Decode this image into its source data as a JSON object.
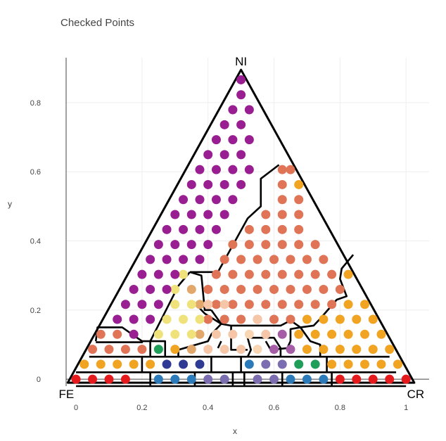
{
  "chart_data": {
    "type": "scatter",
    "title": "Checked Points",
    "xlabel": "x",
    "ylabel": "y",
    "xlim": [
      -0.03,
      1.07
    ],
    "ylim": [
      -0.02,
      0.93
    ],
    "x_ticks": [
      0,
      0.2,
      0.4,
      0.6,
      0.8,
      1
    ],
    "y_ticks": [
      0,
      0.2,
      0.4,
      0.6,
      0.8
    ],
    "x_tick_labels": [
      "0",
      "0.2",
      "0.4",
      "0.6",
      "0.8",
      "1"
    ],
    "y_tick_labels": [
      "0",
      "0.2",
      "0.4",
      "0.6",
      "0.8"
    ],
    "grid": true,
    "vertex_labels": {
      "top": "NI",
      "left": "FE",
      "right": "CR"
    },
    "ternary_step": 0.05,
    "series": [
      {
        "color": "#e41a1c",
        "points": [
          [
            0,
            0
          ],
          [
            0.05,
            0
          ],
          [
            0.1,
            0
          ],
          [
            0.15,
            0
          ],
          [
            0.8,
            0
          ],
          [
            0.85,
            0
          ],
          [
            0.9,
            0
          ],
          [
            0.95,
            0
          ],
          [
            1,
            0
          ]
        ]
      },
      {
        "color": "#2b7bba",
        "points": [
          [
            0.25,
            0
          ],
          [
            0.3,
            0
          ],
          [
            0.35,
            0
          ],
          [
            0.65,
            0
          ],
          [
            0.7,
            0
          ],
          [
            0.75,
            0
          ],
          [
            0.525,
            0.0433
          ]
        ]
      },
      {
        "color": "#7c6db0",
        "points": [
          [
            0.4,
            0
          ],
          [
            0.45,
            0
          ],
          [
            0.55,
            0
          ],
          [
            0.6,
            0
          ],
          [
            0.575,
            0.0433
          ],
          [
            0.625,
            0.0433
          ]
        ]
      },
      {
        "color": "#2f3a94",
        "points": [
          [
            0.275,
            0.0433
          ],
          [
            0.325,
            0.0433
          ],
          [
            0.375,
            0.0433
          ]
        ]
      },
      {
        "color": "#1f9e5a",
        "points": [
          [
            0.675,
            0.0433
          ],
          [
            0.725,
            0.0433
          ],
          [
            0.25,
            0.0866
          ]
        ]
      },
      {
        "color": "#f0a422",
        "points": [
          [
            0.025,
            0.0433
          ],
          [
            0.075,
            0.0433
          ],
          [
            0.125,
            0.0433
          ],
          [
            0.175,
            0.0433
          ],
          [
            0.225,
            0.0433
          ],
          [
            0.775,
            0.0433
          ],
          [
            0.825,
            0.0433
          ],
          [
            0.875,
            0.0433
          ],
          [
            0.925,
            0.0433
          ],
          [
            0.975,
            0.0433
          ],
          [
            0.3,
            0.0866
          ],
          [
            0.7,
            0.0866
          ],
          [
            0.75,
            0.0866
          ],
          [
            0.8,
            0.0866
          ],
          [
            0.85,
            0.0866
          ],
          [
            0.9,
            0.0866
          ],
          [
            0.95,
            0.0866
          ],
          [
            0.675,
            0.1299
          ],
          [
            0.725,
            0.1299
          ],
          [
            0.775,
            0.1299
          ],
          [
            0.825,
            0.1299
          ],
          [
            0.875,
            0.1299
          ],
          [
            0.925,
            0.1299
          ],
          [
            0.7,
            0.1732
          ],
          [
            0.75,
            0.1732
          ],
          [
            0.8,
            0.1732
          ],
          [
            0.85,
            0.1732
          ],
          [
            0.9,
            0.1732
          ],
          [
            0.825,
            0.2165
          ],
          [
            0.875,
            0.2165
          ],
          [
            0.825,
            0.3031
          ],
          [
            0.675,
            0.5629
          ]
        ]
      },
      {
        "color": "#df7457",
        "points": [
          [
            0.05,
            0.0866
          ],
          [
            0.1,
            0.0866
          ],
          [
            0.15,
            0.0866
          ],
          [
            0.2,
            0.0866
          ],
          [
            0.075,
            0.1299
          ],
          [
            0.125,
            0.1299
          ],
          [
            0.4,
            0.1732
          ],
          [
            0.45,
            0.1732
          ],
          [
            0.5,
            0.1732
          ],
          [
            0.55,
            0.1732
          ],
          [
            0.6,
            0.1732
          ],
          [
            0.65,
            0.1732
          ],
          [
            0.425,
            0.2165
          ],
          [
            0.475,
            0.2165
          ],
          [
            0.525,
            0.2165
          ],
          [
            0.575,
            0.2165
          ],
          [
            0.625,
            0.2165
          ],
          [
            0.675,
            0.2165
          ],
          [
            0.725,
            0.2165
          ],
          [
            0.775,
            0.2165
          ],
          [
            0.4,
            0.2598
          ],
          [
            0.45,
            0.2598
          ],
          [
            0.5,
            0.2598
          ],
          [
            0.55,
            0.2598
          ],
          [
            0.6,
            0.2598
          ],
          [
            0.65,
            0.2598
          ],
          [
            0.7,
            0.2598
          ],
          [
            0.75,
            0.2598
          ],
          [
            0.8,
            0.2598
          ],
          [
            0.425,
            0.3031
          ],
          [
            0.475,
            0.3031
          ],
          [
            0.525,
            0.3031
          ],
          [
            0.575,
            0.3031
          ],
          [
            0.625,
            0.3031
          ],
          [
            0.675,
            0.3031
          ],
          [
            0.725,
            0.3031
          ],
          [
            0.775,
            0.3031
          ],
          [
            0.45,
            0.3464
          ],
          [
            0.5,
            0.3464
          ],
          [
            0.55,
            0.3464
          ],
          [
            0.6,
            0.3464
          ],
          [
            0.65,
            0.3464
          ],
          [
            0.7,
            0.3464
          ],
          [
            0.75,
            0.3464
          ],
          [
            0.475,
            0.3897
          ],
          [
            0.525,
            0.3897
          ],
          [
            0.575,
            0.3897
          ],
          [
            0.625,
            0.3897
          ],
          [
            0.675,
            0.3897
          ],
          [
            0.725,
            0.3897
          ],
          [
            0.525,
            0.433
          ],
          [
            0.575,
            0.433
          ],
          [
            0.625,
            0.433
          ],
          [
            0.675,
            0.433
          ],
          [
            0.575,
            0.4763
          ],
          [
            0.625,
            0.4763
          ],
          [
            0.675,
            0.4763
          ],
          [
            0.625,
            0.5196
          ],
          [
            0.675,
            0.5196
          ],
          [
            0.625,
            0.5629
          ],
          [
            0.625,
            0.6062
          ],
          [
            0.65,
            0.6062
          ]
        ]
      },
      {
        "color": "#e2a76a",
        "points": [
          [
            0.35,
            0.0866
          ],
          [
            0.375,
            0.1299
          ],
          [
            0.375,
            0.2165
          ],
          [
            0.35,
            0.2598
          ]
        ]
      },
      {
        "color": "#f5c6a8",
        "points": [
          [
            0.4,
            0.0866
          ],
          [
            0.45,
            0.0866
          ],
          [
            0.5,
            0.0866
          ],
          [
            0.425,
            0.1299
          ],
          [
            0.475,
            0.1299
          ],
          [
            0.575,
            0.1299
          ],
          [
            0.55,
            0.1732
          ],
          [
            0.4,
            0.2165
          ],
          [
            0.45,
            0.2165
          ]
        ]
      },
      {
        "color": "#f8d6b3",
        "points": [
          [
            0.55,
            0.0866
          ],
          [
            0.525,
            0.1299
          ]
        ]
      },
      {
        "color": "#a55da6",
        "points": [
          [
            0.6,
            0.0866
          ],
          [
            0.65,
            0.0866
          ],
          [
            0.625,
            0.1299
          ]
        ]
      },
      {
        "color": "#f0e27a",
        "points": [
          [
            0.35,
            0.1299
          ],
          [
            0.325,
            0.1732
          ],
          [
            0.275,
            0.1732
          ],
          [
            0.3,
            0.2165
          ],
          [
            0.35,
            0.2165
          ],
          [
            0.3,
            0.2598
          ],
          [
            0.325,
            0.3031
          ],
          [
            0.375,
            0.1732
          ],
          [
            0.25,
            0.1299
          ],
          [
            0.3,
            0.1299
          ]
        ]
      },
      {
        "color": "#981e91",
        "points": [
          [
            0.175,
            0.1299
          ],
          [
            0.125,
            0.1732
          ],
          [
            0.175,
            0.1732
          ],
          [
            0.225,
            0.1732
          ],
          [
            0.15,
            0.2165
          ],
          [
            0.2,
            0.2165
          ],
          [
            0.25,
            0.2165
          ],
          [
            0.175,
            0.2598
          ],
          [
            0.225,
            0.2598
          ],
          [
            0.275,
            0.2598
          ],
          [
            0.2,
            0.3031
          ],
          [
            0.25,
            0.3031
          ],
          [
            0.3,
            0.3031
          ],
          [
            0.225,
            0.3464
          ],
          [
            0.275,
            0.3464
          ],
          [
            0.325,
            0.3464
          ],
          [
            0.375,
            0.3464
          ],
          [
            0.25,
            0.3897
          ],
          [
            0.3,
            0.3897
          ],
          [
            0.35,
            0.3897
          ],
          [
            0.4,
            0.3897
          ],
          [
            0.275,
            0.433
          ],
          [
            0.325,
            0.433
          ],
          [
            0.375,
            0.433
          ],
          [
            0.425,
            0.433
          ],
          [
            0.3,
            0.4763
          ],
          [
            0.35,
            0.4763
          ],
          [
            0.4,
            0.4763
          ],
          [
            0.45,
            0.4763
          ],
          [
            0.325,
            0.5196
          ],
          [
            0.375,
            0.5196
          ],
          [
            0.425,
            0.5196
          ],
          [
            0.475,
            0.5196
          ],
          [
            0.35,
            0.5629
          ],
          [
            0.4,
            0.5629
          ],
          [
            0.45,
            0.5629
          ],
          [
            0.5,
            0.5629
          ],
          [
            0.375,
            0.6062
          ],
          [
            0.425,
            0.6062
          ],
          [
            0.475,
            0.6062
          ],
          [
            0.525,
            0.6062
          ],
          [
            0.4,
            0.6495
          ],
          [
            0.45,
            0.6495
          ],
          [
            0.5,
            0.6495
          ],
          [
            0.425,
            0.6928
          ],
          [
            0.475,
            0.6928
          ],
          [
            0.525,
            0.6928
          ],
          [
            0.45,
            0.7361
          ],
          [
            0.5,
            0.7361
          ],
          [
            0.475,
            0.7794
          ],
          [
            0.525,
            0.7794
          ],
          [
            0.5,
            0.8227
          ],
          [
            0.5,
            0.866
          ]
        ]
      }
    ]
  }
}
